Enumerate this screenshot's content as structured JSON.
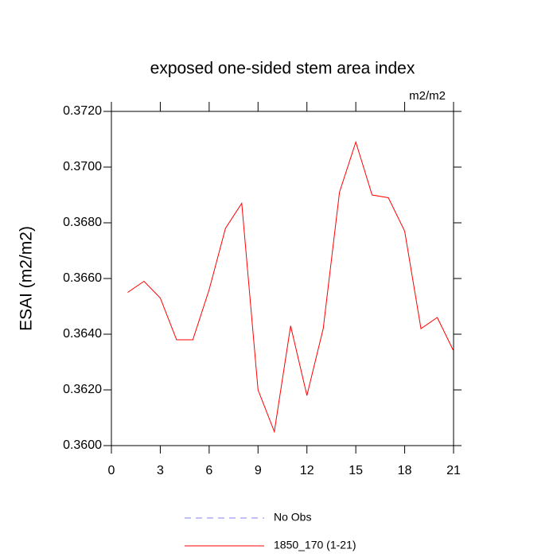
{
  "chart_data": {
    "type": "line",
    "title": "exposed one-sided stem area index",
    "units_label": "m2/m2",
    "ylabel": "ESAI  (m2/m2)",
    "x": [
      1,
      2,
      3,
      4,
      5,
      6,
      7,
      8,
      9,
      10,
      11,
      12,
      13,
      14,
      15,
      16,
      17,
      18,
      19,
      20,
      21
    ],
    "series": [
      {
        "name": "No Obs",
        "color": "#8080ff",
        "dashed": true,
        "values": [
          null,
          null,
          null,
          null,
          null,
          null,
          null,
          null,
          null,
          null,
          null,
          null,
          null,
          null,
          null,
          null,
          null,
          null,
          null,
          null,
          null
        ]
      },
      {
        "name": "1850_170 (1-21)",
        "color": "#ff0000",
        "dashed": false,
        "values": [
          0.3655,
          0.3659,
          0.3653,
          0.3638,
          0.3638,
          0.3656,
          0.3678,
          0.3687,
          0.362,
          0.3605,
          0.3643,
          0.3618,
          0.3642,
          0.3691,
          0.3709,
          0.369,
          0.3689,
          0.3677,
          0.3642,
          0.3646,
          0.3634
        ]
      }
    ],
    "xlim": [
      0,
      21
    ],
    "xticks": [
      0,
      3,
      6,
      9,
      12,
      15,
      18,
      21
    ],
    "ylim": [
      0.36,
      0.372
    ],
    "yticks": [
      {
        "value": 0.36,
        "label": "0.3600"
      },
      {
        "value": 0.362,
        "label": "0.3620"
      },
      {
        "value": 0.364,
        "label": "0.3640"
      },
      {
        "value": 0.366,
        "label": "0.3660"
      },
      {
        "value": 0.368,
        "label": "0.3680"
      },
      {
        "value": 0.37,
        "label": "0.3700"
      },
      {
        "value": 0.372,
        "label": "0.3720"
      }
    ],
    "grid": false
  }
}
